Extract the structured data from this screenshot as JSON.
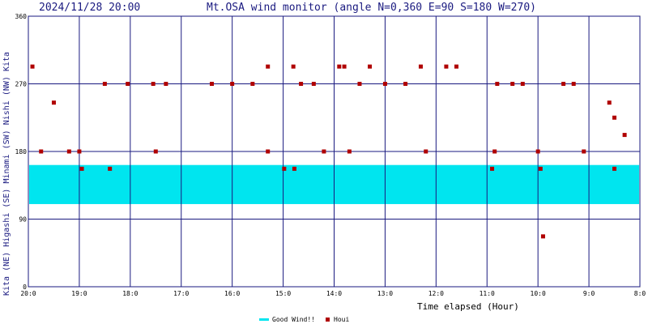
{
  "header": {
    "timestamp": "2024/11/28 20:00",
    "title": "Mt.OSA wind monitor (angle N=0,360 E=90 S=180 W=270)"
  },
  "chart_data": {
    "type": "scatter",
    "xlabel": "Time elapsed (Hour)",
    "ylabel": "Kita (NE) Higashi (SE) Minami (SW) Nishi (NW) Kita",
    "ylim": [
      0,
      360
    ],
    "xlim": [
      20,
      8
    ],
    "x_ticks": [
      "20:0",
      "19:0",
      "18:0",
      "17:0",
      "16:0",
      "15:0",
      "14:0",
      "13:0",
      "12:0",
      "11:0",
      "10:0",
      "9:0",
      "8:0"
    ],
    "y_ticks": [
      "0",
      "90",
      "180",
      "270",
      "360"
    ],
    "grid": true,
    "good_wind_band": [
      110,
      162
    ],
    "legend": [
      {
        "name": "Good Wind!!",
        "color": "#00e5ef"
      },
      {
        "name": "Houi",
        "color": "#b00000"
      }
    ],
    "series": [
      {
        "name": "Houi",
        "color": "#b00000",
        "points": [
          {
            "x": 19.92,
            "y": 293
          },
          {
            "x": 19.75,
            "y": 180
          },
          {
            "x": 19.5,
            "y": 245
          },
          {
            "x": 19.2,
            "y": 180
          },
          {
            "x": 19.0,
            "y": 180
          },
          {
            "x": 18.95,
            "y": 157
          },
          {
            "x": 18.4,
            "y": 157
          },
          {
            "x": 18.5,
            "y": 270
          },
          {
            "x": 18.05,
            "y": 270
          },
          {
            "x": 17.55,
            "y": 270
          },
          {
            "x": 17.3,
            "y": 270
          },
          {
            "x": 17.5,
            "y": 180
          },
          {
            "x": 16.4,
            "y": 270
          },
          {
            "x": 16.0,
            "y": 270
          },
          {
            "x": 15.6,
            "y": 270
          },
          {
            "x": 15.3,
            "y": 293
          },
          {
            "x": 15.3,
            "y": 180
          },
          {
            "x": 14.98,
            "y": 157
          },
          {
            "x": 14.8,
            "y": 293
          },
          {
            "x": 14.78,
            "y": 157
          },
          {
            "x": 14.65,
            "y": 270
          },
          {
            "x": 14.4,
            "y": 270
          },
          {
            "x": 14.2,
            "y": 180
          },
          {
            "x": 13.9,
            "y": 293
          },
          {
            "x": 13.8,
            "y": 293
          },
          {
            "x": 13.7,
            "y": 180
          },
          {
            "x": 13.5,
            "y": 270
          },
          {
            "x": 13.3,
            "y": 293
          },
          {
            "x": 13.0,
            "y": 270
          },
          {
            "x": 12.6,
            "y": 270
          },
          {
            "x": 12.3,
            "y": 293
          },
          {
            "x": 12.2,
            "y": 180
          },
          {
            "x": 11.8,
            "y": 293
          },
          {
            "x": 11.6,
            "y": 293
          },
          {
            "x": 10.9,
            "y": 157
          },
          {
            "x": 10.85,
            "y": 180
          },
          {
            "x": 10.8,
            "y": 270
          },
          {
            "x": 10.5,
            "y": 270
          },
          {
            "x": 10.3,
            "y": 270
          },
          {
            "x": 10.0,
            "y": 180
          },
          {
            "x": 9.95,
            "y": 157
          },
          {
            "x": 9.9,
            "y": 67
          },
          {
            "x": 9.5,
            "y": 270
          },
          {
            "x": 9.3,
            "y": 270
          },
          {
            "x": 9.1,
            "y": 180
          },
          {
            "x": 8.5,
            "y": 157
          },
          {
            "x": 8.3,
            "y": 202
          },
          {
            "x": 8.6,
            "y": 245
          },
          {
            "x": 8.5,
            "y": 225
          }
        ]
      }
    ]
  }
}
